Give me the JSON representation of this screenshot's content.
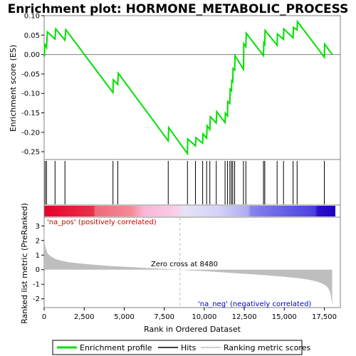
{
  "chart_data": {
    "type": "line",
    "title": "Enrichment plot: HORMONE_METABOLIC_PROCESS",
    "es_panel": {
      "ylabel": "Enrichment score (ES)",
      "ylim": [
        -0.27,
        0.1
      ],
      "yticks": [
        0.1,
        0.05,
        0.0,
        -0.05,
        -0.1,
        -0.15,
        -0.2,
        -0.25
      ],
      "ytick_labels": [
        "0.10",
        "0.05",
        "0.00",
        "-0.05",
        "-0.10",
        "-0.15",
        "-0.20",
        "-0.25"
      ],
      "series": [
        {
          "name": "Enrichment profile",
          "color": "#00ff00",
          "x": [
            0,
            20,
            30,
            150,
            200,
            680,
            720,
            1300,
            1350,
            4300,
            4320,
            4600,
            4630,
            7750,
            7780,
            8950,
            8970,
            9450,
            9480,
            9900,
            9920,
            10150,
            10180,
            10350,
            10380,
            10750,
            10780,
            11300,
            11320,
            11450,
            11470,
            11600,
            11620,
            11700,
            11720,
            11780,
            11800,
            11900,
            11920,
            12450,
            12470,
            12600,
            12620,
            13700,
            13720,
            13780,
            13800,
            14550,
            14570,
            14950,
            14970,
            15550,
            15570,
            15800,
            15820,
            17500,
            17520,
            17990
          ],
          "y": [
            0.0,
            -0.005,
            0.028,
            0.018,
            0.058,
            0.04,
            0.066,
            0.037,
            0.064,
            -0.098,
            -0.065,
            -0.077,
            -0.048,
            -0.222,
            -0.188,
            -0.255,
            -0.217,
            -0.235,
            -0.214,
            -0.228,
            -0.204,
            -0.215,
            -0.183,
            -0.193,
            -0.16,
            -0.176,
            -0.147,
            -0.175,
            -0.151,
            -0.158,
            -0.121,
            -0.126,
            -0.089,
            -0.093,
            -0.067,
            -0.07,
            -0.036,
            -0.04,
            -0.003,
            -0.038,
            0.028,
            0.02,
            0.055,
            -0.003,
            0.03,
            0.026,
            0.062,
            0.024,
            0.053,
            0.039,
            0.066,
            0.043,
            0.07,
            0.063,
            0.085,
            -0.007,
            0.027,
            0.0
          ]
        }
      ]
    },
    "hits": [
      60,
      150,
      680,
      1300,
      4300,
      4600,
      7750,
      8950,
      9450,
      9900,
      10150,
      10350,
      10750,
      11300,
      11450,
      11600,
      11700,
      11780,
      11900,
      12450,
      12600,
      13700,
      13780,
      14550,
      14950,
      15550,
      15800,
      17500
    ],
    "metric_panel": {
      "ylabel": "Ranked list metric (PreRanked)",
      "xlabel": "Rank in Ordered Dataset",
      "ylim": [
        -2.6,
        3.6
      ],
      "yticks": [
        3,
        2,
        1,
        0,
        -1,
        -2
      ],
      "ytick_labels": [
        "3",
        "2",
        "1",
        "0",
        "-1",
        "-2"
      ],
      "xticks": [
        0,
        2500,
        5000,
        7500,
        10000,
        12500,
        15000,
        17500
      ],
      "xtick_labels": [
        "0",
        "2,500",
        "5,000",
        "7,500",
        "10,000",
        "12,500",
        "15,000",
        "17,500"
      ],
      "xlim": [
        0,
        18500
      ],
      "n_genes": 17990,
      "zero_cross": 8480,
      "curve": {
        "x": [
          0,
          30,
          100,
          200,
          400,
          700,
          1000,
          1500,
          2000,
          3000,
          4000,
          5000,
          6000,
          7000,
          8000,
          8480,
          9000,
          10000,
          11000,
          12000,
          13000,
          14000,
          15000,
          16000,
          16500,
          17000,
          17300,
          17500,
          17700,
          17800,
          17900,
          17990
        ],
        "y": [
          3.2,
          1.8,
          1.45,
          1.15,
          0.92,
          0.74,
          0.63,
          0.52,
          0.45,
          0.35,
          0.26,
          0.2,
          0.14,
          0.08,
          0.03,
          0.0,
          -0.04,
          -0.1,
          -0.17,
          -0.24,
          -0.32,
          -0.4,
          -0.49,
          -0.6,
          -0.68,
          -0.8,
          -0.92,
          -1.02,
          -1.2,
          -1.38,
          -1.7,
          -2.42
        ]
      }
    },
    "annotations": {
      "pos_label": "'na_pos' (positively correlated)",
      "neg_label": "'na_neg' (negatively correlated)",
      "zero_cross_label": "Zero cross at 8480"
    },
    "legend": {
      "items": [
        {
          "label": "Enrichment profile",
          "color": "#00ff00"
        },
        {
          "label": "Hits",
          "color": "#000000"
        },
        {
          "label": "Ranking metric scores",
          "color": "#bebebe"
        }
      ]
    },
    "colors": {
      "pos_text": "#cc0000",
      "neg_text": "#0000cc",
      "metric_fill": "#bebebe",
      "zero_line": "#bebebe"
    }
  }
}
